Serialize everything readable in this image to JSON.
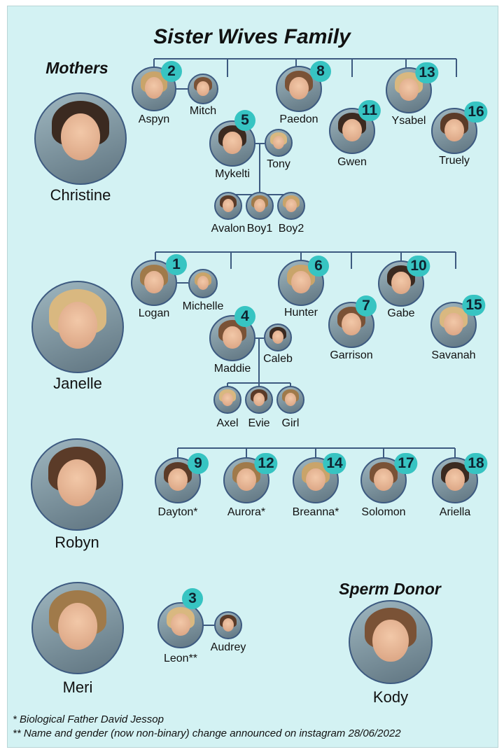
{
  "title": "Sister Wives Family",
  "mothers_heading": "Mothers",
  "donor_heading": "Sperm Donor",
  "colors": {
    "background": "#d3f2f3",
    "badge": "#37c4c2",
    "lines": "#3d5a80"
  },
  "mothers": [
    {
      "name": "Christine"
    },
    {
      "name": "Janelle"
    },
    {
      "name": "Robyn"
    },
    {
      "name": "Meri"
    }
  ],
  "donor": {
    "name": "Kody"
  },
  "people": [
    {
      "name": "Aspyn",
      "badge": "2"
    },
    {
      "name": "Mitch"
    },
    {
      "name": "Mykelti",
      "badge": "5"
    },
    {
      "name": "Tony"
    },
    {
      "name": "Avalon"
    },
    {
      "name": "Boy1"
    },
    {
      "name": "Boy2"
    },
    {
      "name": "Paedon",
      "badge": "8"
    },
    {
      "name": "Gwen",
      "badge": "11"
    },
    {
      "name": "Ysabel",
      "badge": "13"
    },
    {
      "name": "Truely",
      "badge": "16"
    },
    {
      "name": "Logan",
      "badge": "1"
    },
    {
      "name": "Michelle"
    },
    {
      "name": "Maddie",
      "badge": "4"
    },
    {
      "name": "Caleb"
    },
    {
      "name": "Axel"
    },
    {
      "name": "Evie"
    },
    {
      "name": "Girl"
    },
    {
      "name": "Hunter",
      "badge": "6"
    },
    {
      "name": "Garrison",
      "badge": "7"
    },
    {
      "name": "Gabe",
      "badge": "10"
    },
    {
      "name": "Savanah",
      "badge": "15"
    },
    {
      "name": "Dayton*",
      "badge": "9"
    },
    {
      "name": "Aurora*",
      "badge": "12"
    },
    {
      "name": "Breanna*",
      "badge": "14"
    },
    {
      "name": "Solomon",
      "badge": "17"
    },
    {
      "name": "Ariella",
      "badge": "18"
    },
    {
      "name": "Leon**",
      "badge": "3"
    },
    {
      "name": "Audrey"
    }
  ],
  "footnotes": [
    "*  Biological Father David Jessop",
    "** Name and gender (now non-binary) change announced on instagram 28/06/2022"
  ]
}
